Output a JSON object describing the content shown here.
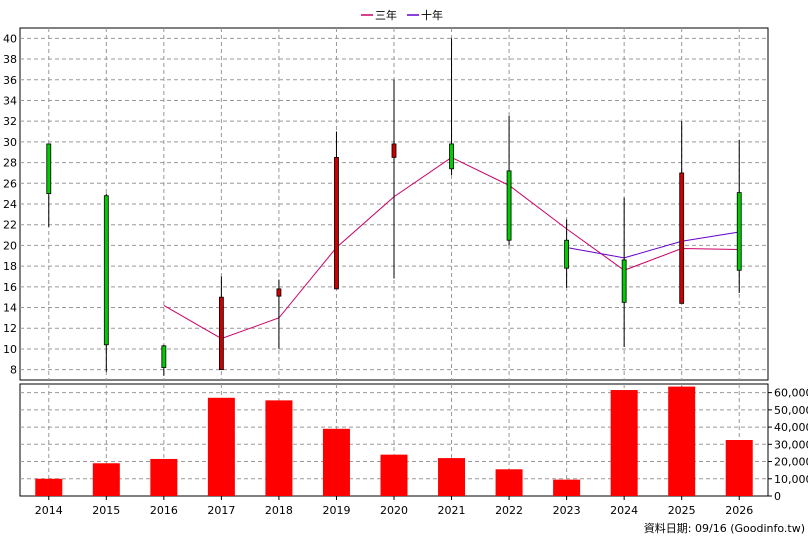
{
  "legend": [
    {
      "label": "三年",
      "color": "#cc0066"
    },
    {
      "label": "十年",
      "color": "#6600cc"
    }
  ],
  "source_note": "資料日期: 09/16 (Goodinfo.tw)",
  "chart_data": [
    {
      "type": "candlestick",
      "categories": [
        "2014",
        "2015",
        "2016",
        "2017",
        "2018",
        "2019",
        "2020",
        "2021",
        "2022",
        "2023",
        "2024",
        "2025",
        "2026"
      ],
      "ylim": [
        7,
        41
      ],
      "yticks": [
        8,
        10,
        12,
        14,
        16,
        18,
        20,
        22,
        24,
        26,
        28,
        30,
        32,
        34,
        36,
        38,
        40
      ],
      "grid": true,
      "up_color": "#00cc00",
      "down_color": "#cc0000",
      "candles": [
        {
          "x": "2014",
          "open": 25.0,
          "close": 29.8,
          "high": 29.8,
          "low": 21.8
        },
        {
          "x": "2015",
          "open": 10.4,
          "close": 24.8,
          "high": 25.0,
          "low": 7.8
        },
        {
          "x": "2016",
          "open": 8.2,
          "close": 10.3,
          "high": 10.4,
          "low": 7.4
        },
        {
          "x": "2017",
          "open": 15.0,
          "close": 8.0,
          "high": 17.0,
          "low": 8.0
        },
        {
          "x": "2018",
          "open": 15.8,
          "close": 15.1,
          "high": 16.7,
          "low": 10.0
        },
        {
          "x": "2019",
          "open": 28.5,
          "close": 15.8,
          "high": 31.0,
          "low": 15.8
        },
        {
          "x": "2020",
          "open": 29.8,
          "close": 28.5,
          "high": 36.0,
          "low": 16.8
        },
        {
          "x": "2021",
          "open": 27.4,
          "close": 29.8,
          "high": 40.0,
          "low": 26.8
        },
        {
          "x": "2022",
          "open": 20.5,
          "close": 27.2,
          "high": 32.5,
          "low": 20.0
        },
        {
          "x": "2023",
          "open": 17.8,
          "close": 20.5,
          "high": 22.5,
          "low": 15.9
        },
        {
          "x": "2024",
          "open": 14.5,
          "close": 18.6,
          "high": 24.6,
          "low": 10.2
        },
        {
          "x": "2025",
          "open": 27.0,
          "close": 14.4,
          "high": 32.0,
          "low": 14.4
        },
        {
          "x": "2026",
          "open": 17.6,
          "close": 25.1,
          "high": 30.2,
          "low": 15.4
        }
      ],
      "series": [
        {
          "name": "三年",
          "color": "#cc0066",
          "points": [
            {
              "x": "2016",
              "y": 14.2
            },
            {
              "x": "2017",
              "y": 11.0
            },
            {
              "x": "2018",
              "y": 13.0
            },
            {
              "x": "2019",
              "y": 19.8
            },
            {
              "x": "2020",
              "y": 24.7
            },
            {
              "x": "2021",
              "y": 28.5
            },
            {
              "x": "2022",
              "y": 25.8
            },
            {
              "x": "2023",
              "y": 21.6
            },
            {
              "x": "2024",
              "y": 17.6
            },
            {
              "x": "2025",
              "y": 19.7
            },
            {
              "x": "2026",
              "y": 19.6
            }
          ]
        },
        {
          "name": "十年",
          "color": "#6600cc",
          "points": [
            {
              "x": "2023",
              "y": 19.8
            },
            {
              "x": "2024",
              "y": 18.8
            },
            {
              "x": "2025",
              "y": 20.4
            },
            {
              "x": "2026",
              "y": 21.3
            }
          ]
        }
      ]
    },
    {
      "type": "bar",
      "categories": [
        "2014",
        "2015",
        "2016",
        "2017",
        "2018",
        "2019",
        "2020",
        "2021",
        "2022",
        "2023",
        "2024",
        "2025",
        "2026"
      ],
      "values": [
        10000,
        19000,
        21500,
        57000,
        55500,
        39000,
        24000,
        22000,
        15500,
        9500,
        61500,
        63500,
        32500
      ],
      "ylim": [
        0,
        65000
      ],
      "yticks": [
        0,
        10000,
        20000,
        30000,
        40000,
        50000,
        60000
      ],
      "ytick_labels": [
        "0",
        "10,000",
        "20,000",
        "30,000",
        "40,000",
        "50,000",
        "60,000"
      ],
      "color": "#ff0000",
      "grid": true
    }
  ]
}
